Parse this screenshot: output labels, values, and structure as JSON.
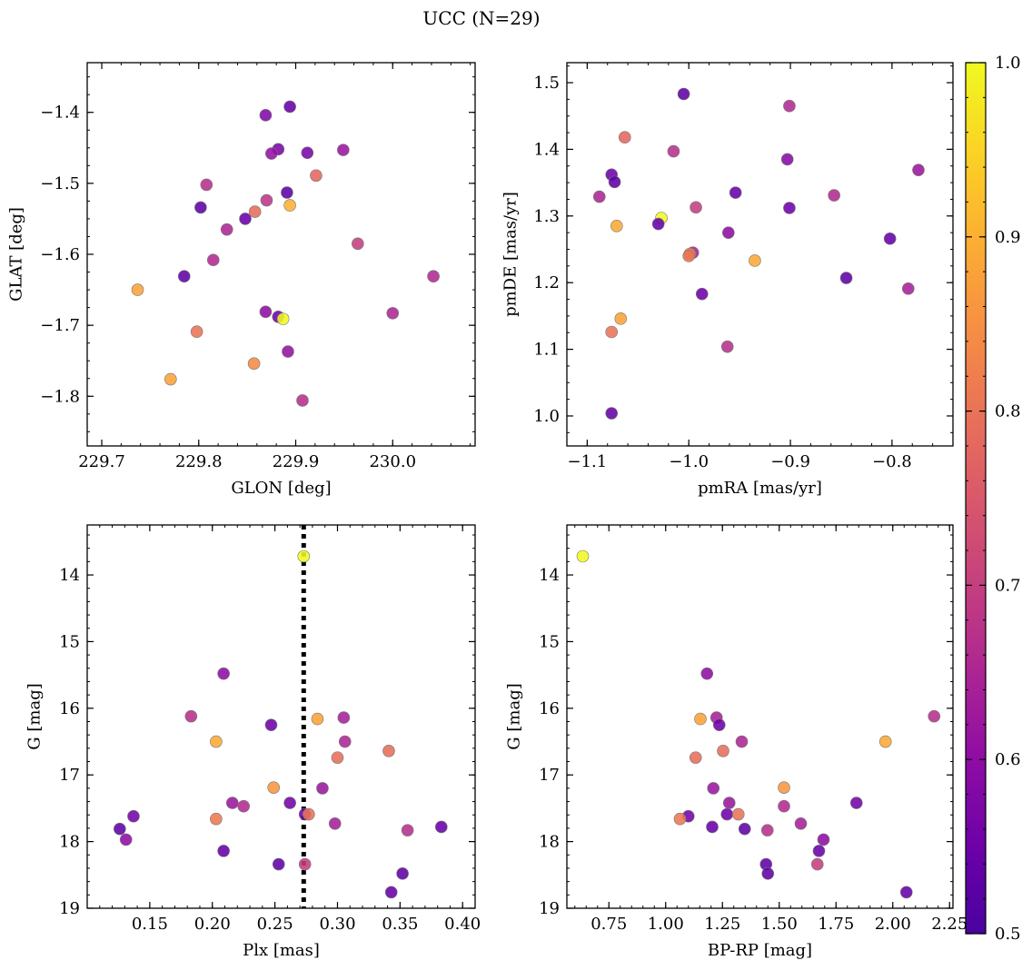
{
  "figure": {
    "title": "UCC (N=29)"
  },
  "colorbar": {
    "range": [
      0.5,
      1.0
    ],
    "ticks": [
      "0.5",
      "0.6",
      "0.7",
      "0.8",
      "0.9",
      "1.0"
    ],
    "colormap": "plasma"
  },
  "chart_data": [
    {
      "type": "scatter",
      "panel": "top-left",
      "xlabel": "GLON [deg]",
      "ylabel": "GLAT [deg]",
      "xlim": [
        229.685,
        230.085
      ],
      "ylim": [
        -1.87,
        -1.33
      ],
      "y_inverted": false,
      "xticks": [
        "229.7",
        "229.8",
        "229.9",
        "230.0"
      ],
      "yticks": [
        "-1.8",
        "-1.7",
        "-1.6",
        "-1.5",
        "-1.4"
      ],
      "points": [
        {
          "x": 229.894,
          "y": -1.392,
          "c": 0.54
        },
        {
          "x": 229.869,
          "y": -1.404,
          "c": 0.58
        },
        {
          "x": 229.882,
          "y": -1.452,
          "c": 0.57
        },
        {
          "x": 229.875,
          "y": -1.458,
          "c": 0.61
        },
        {
          "x": 229.912,
          "y": -1.457,
          "c": 0.57
        },
        {
          "x": 229.949,
          "y": -1.453,
          "c": 0.62
        },
        {
          "x": 229.921,
          "y": -1.489,
          "c": 0.78
        },
        {
          "x": 229.808,
          "y": -1.502,
          "c": 0.67
        },
        {
          "x": 229.891,
          "y": -1.513,
          "c": 0.53
        },
        {
          "x": 229.87,
          "y": -1.524,
          "c": 0.68
        },
        {
          "x": 229.894,
          "y": -1.531,
          "c": 0.9
        },
        {
          "x": 229.802,
          "y": -1.534,
          "c": 0.53
        },
        {
          "x": 229.858,
          "y": -1.54,
          "c": 0.79
        },
        {
          "x": 229.848,
          "y": -1.55,
          "c": 0.54
        },
        {
          "x": 229.829,
          "y": -1.565,
          "c": 0.65
        },
        {
          "x": 229.964,
          "y": -1.585,
          "c": 0.7
        },
        {
          "x": 229.815,
          "y": -1.608,
          "c": 0.66
        },
        {
          "x": 229.785,
          "y": -1.631,
          "c": 0.53
        },
        {
          "x": 230.042,
          "y": -1.631,
          "c": 0.66
        },
        {
          "x": 229.737,
          "y": -1.65,
          "c": 0.88
        },
        {
          "x": 229.869,
          "y": -1.681,
          "c": 0.6
        },
        {
          "x": 230.0,
          "y": -1.683,
          "c": 0.65
        },
        {
          "x": 229.882,
          "y": -1.688,
          "c": 0.55
        },
        {
          "x": 229.887,
          "y": -1.691,
          "c": 1.0
        },
        {
          "x": 229.798,
          "y": -1.709,
          "c": 0.8
        },
        {
          "x": 229.892,
          "y": -1.737,
          "c": 0.61
        },
        {
          "x": 229.857,
          "y": -1.754,
          "c": 0.84
        },
        {
          "x": 229.771,
          "y": -1.776,
          "c": 0.88
        },
        {
          "x": 229.907,
          "y": -1.806,
          "c": 0.67
        }
      ]
    },
    {
      "type": "scatter",
      "panel": "top-right",
      "xlabel": "pmRA [mas/yr]",
      "ylabel": "pmDE [mas/yr]",
      "xlim": [
        -1.12,
        -0.74
      ],
      "ylim": [
        0.955,
        1.53
      ],
      "y_inverted": false,
      "xticks": [
        "-1.1",
        "-1.0",
        "-0.9",
        "-0.8"
      ],
      "yticks": [
        "1.0",
        "1.1",
        "1.2",
        "1.3",
        "1.4",
        "1.5"
      ],
      "points": [
        {
          "x": -1.005,
          "y": 1.483,
          "c": 0.53
        },
        {
          "x": -0.901,
          "y": 1.465,
          "c": 0.66
        },
        {
          "x": -1.063,
          "y": 1.418,
          "c": 0.78
        },
        {
          "x": -1.015,
          "y": 1.397,
          "c": 0.67
        },
        {
          "x": -0.903,
          "y": 1.385,
          "c": 0.59
        },
        {
          "x": -0.774,
          "y": 1.369,
          "c": 0.62
        },
        {
          "x": -1.076,
          "y": 1.362,
          "c": 0.55
        },
        {
          "x": -1.073,
          "y": 1.351,
          "c": 0.53
        },
        {
          "x": -0.954,
          "y": 1.335,
          "c": 0.54
        },
        {
          "x": -0.857,
          "y": 1.331,
          "c": 0.66
        },
        {
          "x": -1.088,
          "y": 1.329,
          "c": 0.65
        },
        {
          "x": -0.993,
          "y": 1.313,
          "c": 0.7
        },
        {
          "x": -0.901,
          "y": 1.312,
          "c": 0.55
        },
        {
          "x": -1.027,
          "y": 1.297,
          "c": 1.0
        },
        {
          "x": -1.03,
          "y": 1.288,
          "c": 0.54
        },
        {
          "x": -1.071,
          "y": 1.285,
          "c": 0.89
        },
        {
          "x": -0.961,
          "y": 1.275,
          "c": 0.6
        },
        {
          "x": -0.802,
          "y": 1.266,
          "c": 0.54
        },
        {
          "x": -0.996,
          "y": 1.245,
          "c": 0.64
        },
        {
          "x": -0.999,
          "y": 1.243,
          "c": 0.84
        },
        {
          "x": -1.0,
          "y": 1.24,
          "c": 0.8
        },
        {
          "x": -0.935,
          "y": 1.233,
          "c": 0.89
        },
        {
          "x": -0.845,
          "y": 1.207,
          "c": 0.53
        },
        {
          "x": -0.784,
          "y": 1.191,
          "c": 0.64
        },
        {
          "x": -0.987,
          "y": 1.183,
          "c": 0.55
        },
        {
          "x": -1.067,
          "y": 1.146,
          "c": 0.88
        },
        {
          "x": -1.076,
          "y": 1.126,
          "c": 0.8
        },
        {
          "x": -0.962,
          "y": 1.104,
          "c": 0.67
        },
        {
          "x": -1.076,
          "y": 1.004,
          "c": 0.54
        }
      ]
    },
    {
      "type": "scatter",
      "panel": "bottom-left",
      "xlabel": "Plx [mas]",
      "ylabel": "G [mag]",
      "xlim": [
        0.1,
        0.41
      ],
      "ylim": [
        19.0,
        13.25
      ],
      "y_inverted": true,
      "xticks": [
        "0.15",
        "0.20",
        "0.25",
        "0.30",
        "0.35",
        "0.40"
      ],
      "yticks": [
        "14",
        "15",
        "16",
        "17",
        "18",
        "19"
      ],
      "vline": {
        "x": 0.273,
        "style": "dotted"
      },
      "points": [
        {
          "x": 0.273,
          "y": 13.72,
          "c": 1.0
        },
        {
          "x": 0.209,
          "y": 15.48,
          "c": 0.6
        },
        {
          "x": 0.183,
          "y": 16.12,
          "c": 0.67
        },
        {
          "x": 0.305,
          "y": 16.14,
          "c": 0.64
        },
        {
          "x": 0.284,
          "y": 16.16,
          "c": 0.88
        },
        {
          "x": 0.247,
          "y": 16.25,
          "c": 0.55
        },
        {
          "x": 0.203,
          "y": 16.5,
          "c": 0.89
        },
        {
          "x": 0.306,
          "y": 16.5,
          "c": 0.65
        },
        {
          "x": 0.341,
          "y": 16.64,
          "c": 0.79
        },
        {
          "x": 0.3,
          "y": 16.74,
          "c": 0.79
        },
        {
          "x": 0.249,
          "y": 17.19,
          "c": 0.86
        },
        {
          "x": 0.288,
          "y": 17.2,
          "c": 0.62
        },
        {
          "x": 0.262,
          "y": 17.42,
          "c": 0.56
        },
        {
          "x": 0.216,
          "y": 17.42,
          "c": 0.62
        },
        {
          "x": 0.225,
          "y": 17.47,
          "c": 0.66
        },
        {
          "x": 0.274,
          "y": 17.59,
          "c": 0.55
        },
        {
          "x": 0.277,
          "y": 17.59,
          "c": 0.8
        },
        {
          "x": 0.137,
          "y": 17.62,
          "c": 0.56
        },
        {
          "x": 0.203,
          "y": 17.66,
          "c": 0.81
        },
        {
          "x": 0.298,
          "y": 17.73,
          "c": 0.64
        },
        {
          "x": 0.383,
          "y": 17.78,
          "c": 0.54
        },
        {
          "x": 0.126,
          "y": 17.81,
          "c": 0.53
        },
        {
          "x": 0.356,
          "y": 17.83,
          "c": 0.67
        },
        {
          "x": 0.131,
          "y": 17.97,
          "c": 0.6
        },
        {
          "x": 0.209,
          "y": 18.14,
          "c": 0.54
        },
        {
          "x": 0.253,
          "y": 18.34,
          "c": 0.53
        },
        {
          "x": 0.274,
          "y": 18.34,
          "c": 0.7
        },
        {
          "x": 0.352,
          "y": 18.48,
          "c": 0.53
        },
        {
          "x": 0.343,
          "y": 18.76,
          "c": 0.54
        }
      ]
    },
    {
      "type": "scatter",
      "panel": "bottom-right",
      "xlabel": "BP-RP [mag]",
      "ylabel": "G [mag]",
      "xlim": [
        0.565,
        2.265
      ],
      "ylim": [
        19.0,
        13.25
      ],
      "y_inverted": true,
      "xticks": [
        "0.75",
        "1.00",
        "1.25",
        "1.50",
        "1.75",
        "2.00",
        "2.25"
      ],
      "yticks": [
        "14",
        "15",
        "16",
        "17",
        "18",
        "19"
      ],
      "points": [
        {
          "x": 0.635,
          "y": 13.72,
          "c": 1.0
        },
        {
          "x": 1.182,
          "y": 15.48,
          "c": 0.6
        },
        {
          "x": 2.182,
          "y": 16.12,
          "c": 0.67
        },
        {
          "x": 1.224,
          "y": 16.14,
          "c": 0.64
        },
        {
          "x": 1.153,
          "y": 16.16,
          "c": 0.88
        },
        {
          "x": 1.236,
          "y": 16.25,
          "c": 0.55
        },
        {
          "x": 1.968,
          "y": 16.5,
          "c": 0.89
        },
        {
          "x": 1.335,
          "y": 16.5,
          "c": 0.65
        },
        {
          "x": 1.253,
          "y": 16.64,
          "c": 0.79
        },
        {
          "x": 1.132,
          "y": 16.74,
          "c": 0.79
        },
        {
          "x": 1.521,
          "y": 17.19,
          "c": 0.86
        },
        {
          "x": 1.21,
          "y": 17.2,
          "c": 0.62
        },
        {
          "x": 1.84,
          "y": 17.42,
          "c": 0.56
        },
        {
          "x": 1.28,
          "y": 17.42,
          "c": 0.62
        },
        {
          "x": 1.521,
          "y": 17.47,
          "c": 0.66
        },
        {
          "x": 1.27,
          "y": 17.59,
          "c": 0.55
        },
        {
          "x": 1.32,
          "y": 17.59,
          "c": 0.8
        },
        {
          "x": 1.1,
          "y": 17.62,
          "c": 0.56
        },
        {
          "x": 1.063,
          "y": 17.66,
          "c": 0.81
        },
        {
          "x": 1.595,
          "y": 17.73,
          "c": 0.64
        },
        {
          "x": 1.205,
          "y": 17.78,
          "c": 0.54
        },
        {
          "x": 1.348,
          "y": 17.81,
          "c": 0.53
        },
        {
          "x": 1.448,
          "y": 17.83,
          "c": 0.67
        },
        {
          "x": 1.695,
          "y": 17.97,
          "c": 0.6
        },
        {
          "x": 1.675,
          "y": 18.14,
          "c": 0.54
        },
        {
          "x": 1.442,
          "y": 18.34,
          "c": 0.53
        },
        {
          "x": 1.668,
          "y": 18.34,
          "c": 0.7
        },
        {
          "x": 1.45,
          "y": 18.48,
          "c": 0.53
        },
        {
          "x": 2.06,
          "y": 18.76,
          "c": 0.54
        }
      ]
    }
  ]
}
